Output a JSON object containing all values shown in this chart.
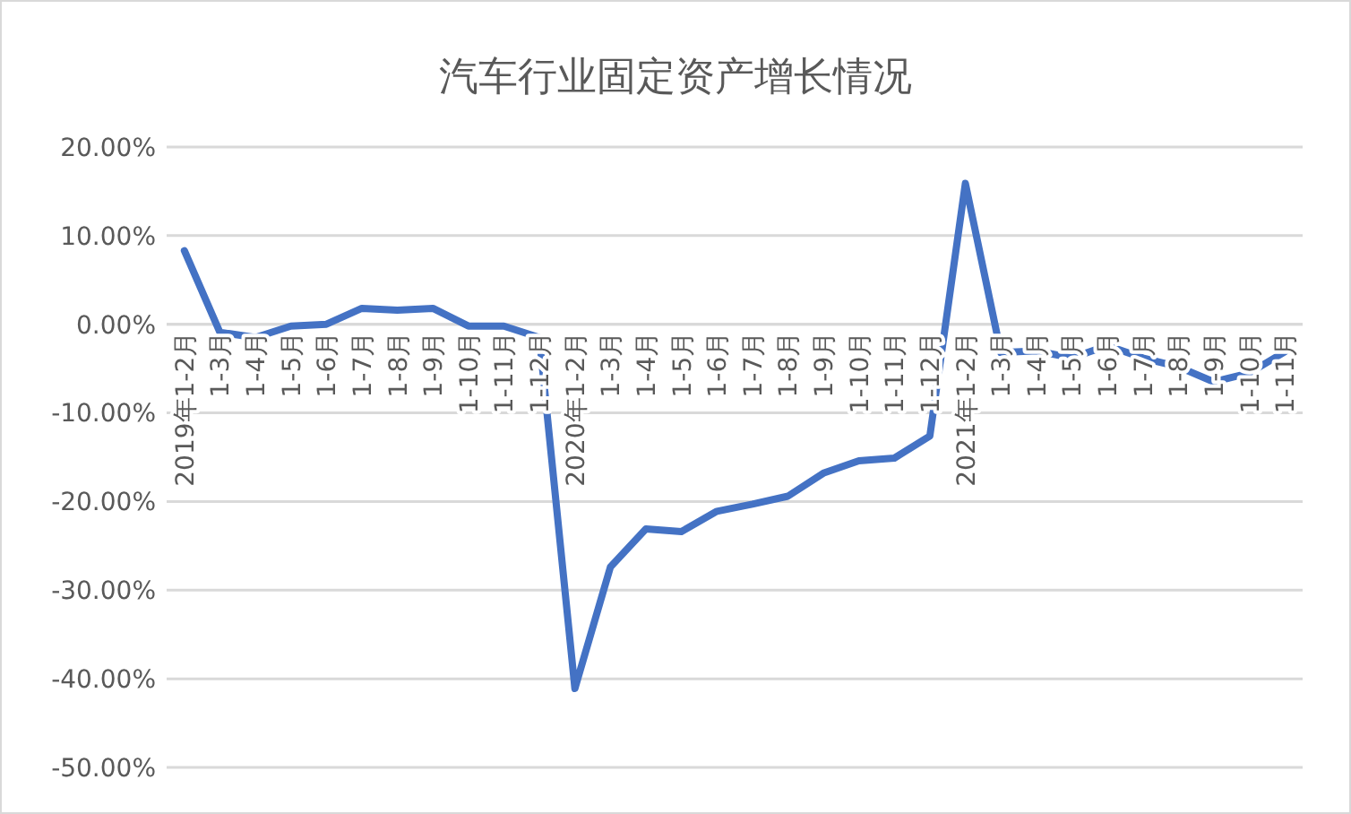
{
  "chart_data": {
    "type": "line",
    "title": "汽车行业固定资产增长情况",
    "categories": [
      "2019年1-2月",
      "1-3月",
      "1-4月",
      "1-5月",
      "1-6月",
      "1-7月",
      "1-8月",
      "1-9月",
      "1-10月",
      "1-11月",
      "1-12月",
      "2020年1-2月",
      "1-3月",
      "1-4月",
      "1-5月",
      "1-6月",
      "1-7月",
      "1-8月",
      "1-9月",
      "1-10月",
      "1-11月",
      "1-12月",
      "2021年1-2月",
      "1-3月",
      "1-4月",
      "1-5月",
      "1-6月",
      "1-7月",
      "1-8月",
      "1-9月",
      "1-10月",
      "1-11月"
    ],
    "series": [
      {
        "color": "#4472c4",
        "values": [
          8.3,
          -0.9,
          -1.5,
          -0.2,
          0,
          1.8,
          1.6,
          1.8,
          -0.2,
          -0.2,
          -1.5,
          -41.1,
          -27.4,
          -23.1,
          -23.4,
          -21.1,
          -20.3,
          -19.4,
          -16.8,
          -15.4,
          -15.1,
          -12.6,
          15.9,
          -3.2,
          -3.0,
          -3.8,
          -2.4,
          -3.8,
          -4.8,
          -6.5,
          -5.5,
          -3.1
        ]
      }
    ],
    "ylim": [
      -50,
      20
    ],
    "yticks": [
      {
        "value": 20,
        "label": "20.00%"
      },
      {
        "value": 10,
        "label": "10.00%"
      },
      {
        "value": 0,
        "label": "0.00%"
      },
      {
        "value": -10,
        "label": "-10.00%"
      },
      {
        "value": -20,
        "label": "-20.00%"
      },
      {
        "value": -30,
        "label": "-30.00%"
      },
      {
        "value": -40,
        "label": "-40.00%"
      },
      {
        "value": -50,
        "label": "-50.00%"
      }
    ],
    "grid": "y",
    "marker": "none",
    "line_style": "solid"
  }
}
